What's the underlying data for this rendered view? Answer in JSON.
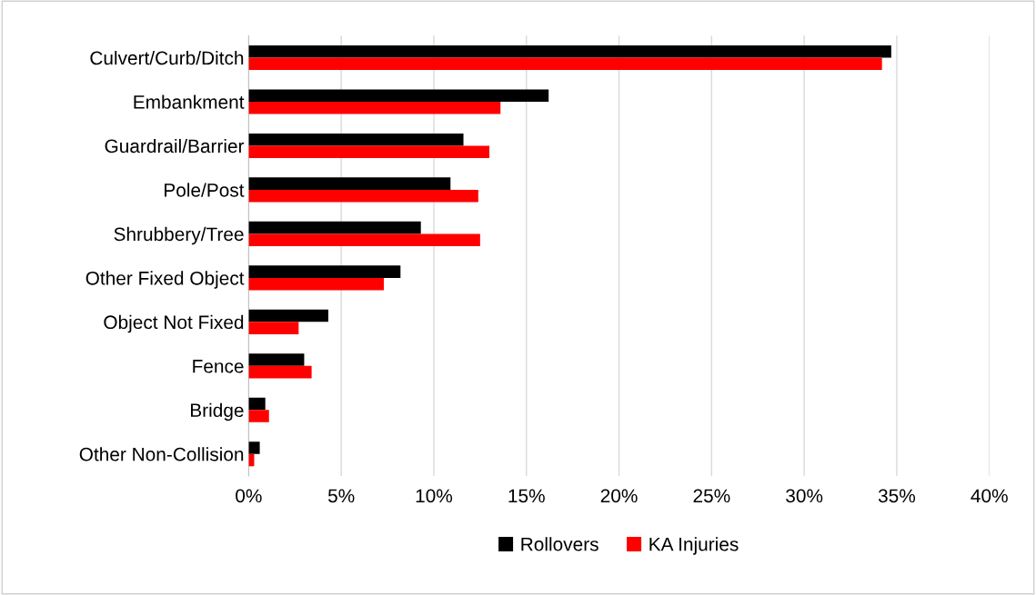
{
  "chart_data": {
    "type": "bar",
    "orientation": "horizontal",
    "categories": [
      "Culvert/Curb/Ditch",
      "Embankment",
      "Guardrail/Barrier",
      "Pole/Post",
      "Shrubbery/Tree",
      "Other Fixed Object",
      "Object Not Fixed",
      "Fence",
      "Bridge",
      "Other Non-Collision"
    ],
    "series": [
      {
        "name": "Rollovers",
        "color": "#000000",
        "values": [
          34.7,
          16.2,
          11.6,
          10.9,
          9.3,
          8.2,
          4.3,
          3.0,
          0.9,
          0.6
        ]
      },
      {
        "name": "KA Injuries",
        "color": "#ff0000",
        "values": [
          34.2,
          13.6,
          13.0,
          12.4,
          12.5,
          7.3,
          2.7,
          3.4,
          1.1,
          0.3
        ]
      }
    ],
    "xlim": [
      0,
      40
    ],
    "xticks": [
      {
        "value": 0,
        "label": "0%"
      },
      {
        "value": 5,
        "label": "5%"
      },
      {
        "value": 10,
        "label": "10%"
      },
      {
        "value": 15,
        "label": "15%"
      },
      {
        "value": 20,
        "label": "20%"
      },
      {
        "value": 25,
        "label": "25%"
      },
      {
        "value": 30,
        "label": "30%"
      },
      {
        "value": 35,
        "label": "35%"
      },
      {
        "value": 40,
        "label": "40%"
      }
    ],
    "grid": "x",
    "legend": "bottom"
  }
}
